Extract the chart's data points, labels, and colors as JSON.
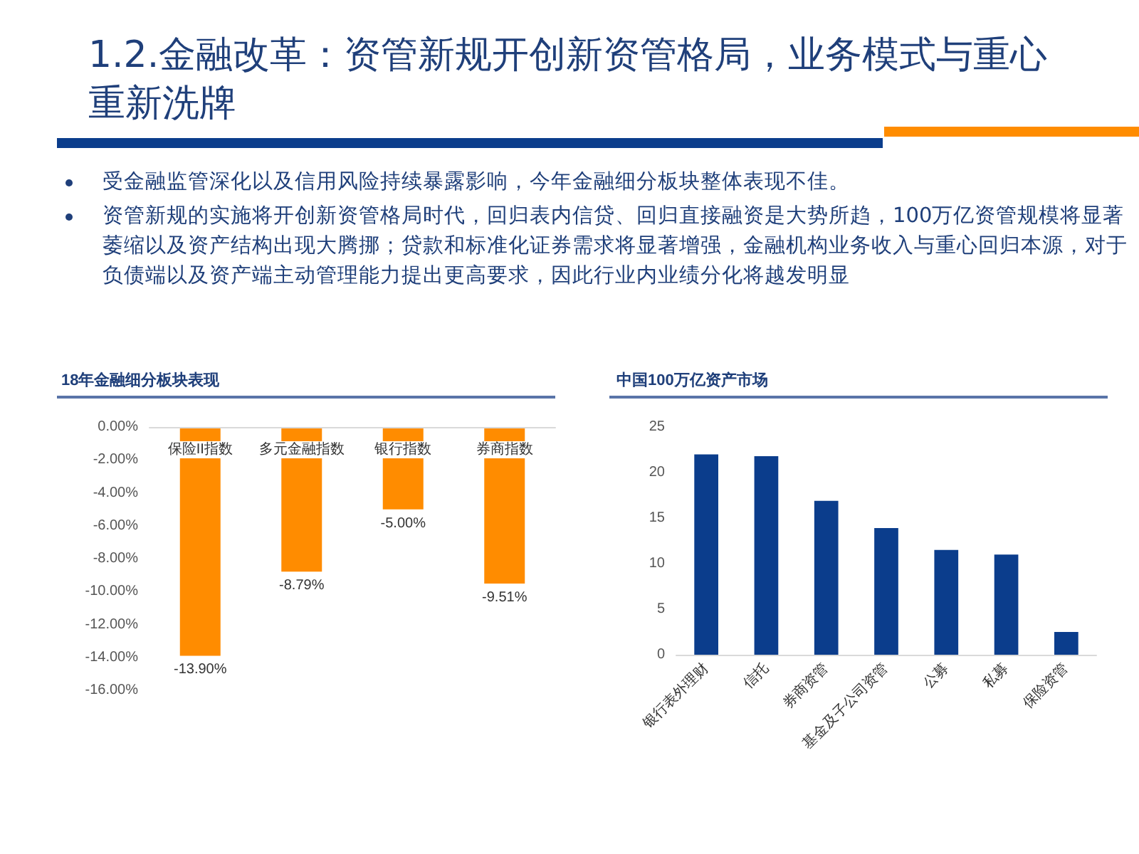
{
  "chart_data": [
    {
      "type": "other",
      "title": "1.2.金融改革：资管新规开创新资管格局，业务模式与重心重新洗牌",
      "annotations": [
        "受金融监管深化以及信用风险持续暴露影响，今年金融细分板块整体表现不佳。",
        "资管新规的实施将开创新资管格局时代，回归表内信贷、回归直接融资是大势所趋，100万亿资管规模将显著萎缩以及资产结构出现大腾挪；贷款和标准化证券需求将显著增强，金融机构业务收入与重心回归本源，对于负债端以及资产端主动管理能力提出更高要求，因此行业内业绩分化将越发明显"
      ]
    },
    {
      "type": "bar",
      "title": "18年金融细分板块表现",
      "categories": [
        "保险II指数",
        "多元金融指数",
        "银行指数",
        "券商指数"
      ],
      "values": [
        -13.9,
        -8.79,
        -5.0,
        -9.51
      ],
      "value_labels": [
        "-13.90%",
        "-8.79%",
        "-5.00%",
        "-9.51%"
      ],
      "color": "#ff8c00",
      "ylim": [
        -16,
        0
      ],
      "yticks": [
        {
          "value": -16,
          "label": "-16.00%"
        },
        {
          "value": -14,
          "label": "-14.00%"
        },
        {
          "value": -12,
          "label": "-12.00%"
        },
        {
          "value": -10,
          "label": "-10.00%"
        },
        {
          "value": -8,
          "label": "-8.00%"
        },
        {
          "value": -6,
          "label": "-6.00%"
        },
        {
          "value": -4,
          "label": "-4.00%"
        },
        {
          "value": -2,
          "label": "-2.00%"
        },
        {
          "value": 0,
          "label": "0.00%"
        }
      ]
    },
    {
      "type": "bar",
      "title": "中国100万亿资产市场",
      "categories": [
        "银行表外理财",
        "信托",
        "券商资管",
        "基金及子公司资管",
        "公募",
        "私募",
        "保险资管"
      ],
      "values": [
        22.0,
        21.8,
        16.9,
        13.9,
        11.5,
        11.0,
        2.5
      ],
      "color": "#0b3d8c",
      "ylim": [
        0,
        25
      ],
      "yticks": [
        0,
        5,
        10,
        15,
        20,
        25
      ]
    }
  ]
}
